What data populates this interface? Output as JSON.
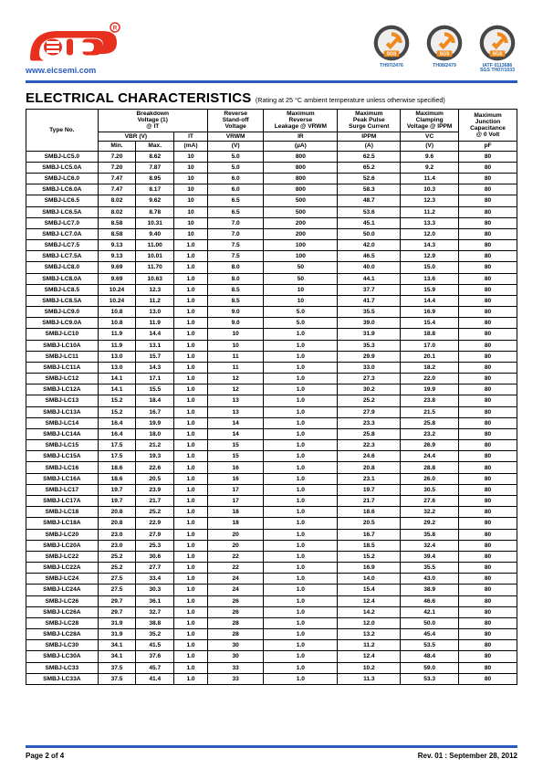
{
  "brand": {
    "url_text": "www.eicsemi.com"
  },
  "badges": [
    {
      "caption": "TH97/2476"
    },
    {
      "caption": "TH08/2479"
    },
    {
      "caption": "IATF 0113686\nSGS TH07/1033"
    }
  ],
  "header_rule_color": "#2a5bbd",
  "title": "ELECTRICAL CHARACTERISTICS",
  "subtitle": " (Rating at 25 °C ambient temperature unless otherwise specified)",
  "table": {
    "head": {
      "type_no": "Type No.",
      "breakdown": "Breakdown\nVoltage (1)\n@ IT",
      "reverse_standoff": "Reverse\nStand-off\nVoltage",
      "max_rev_leak": "Maximum\nReverse\nLeakage @ VRWM",
      "max_ppk": "Maximum\nPeak Pulse\nSurge Current",
      "max_clamp": "Maximum\nClamping\nVoltage @ IPPM",
      "max_cap": "Maximum\nJunction\nCapacitance\n@ 0 Volt",
      "symbols": {
        "vbr": "VBR  (V)",
        "it": "IT",
        "vrwm": "VRWM",
        "ir": "IR",
        "ippm": "IPPM",
        "vc": "VC"
      },
      "units": {
        "min": "Min.",
        "max": "Max.",
        "it": "(mA)",
        "vrwm": "(V)",
        "ir": "(µA)",
        "ippm": "(A)",
        "vc": "(V)",
        "cap": "pF"
      }
    },
    "rows": [
      [
        "SMBJ-LC5.0",
        "7.20",
        "8.62",
        "10",
        "5.0",
        "800",
        "62.5",
        "9.6",
        "80"
      ],
      [
        "SMBJ-LC5.0A",
        "7.20",
        "7.87",
        "10",
        "5.0",
        "800",
        "65.2",
        "9.2",
        "80"
      ],
      [
        "SMBJ-LC6.0",
        "7.47",
        "8.95",
        "10",
        "6.0",
        "800",
        "52.6",
        "11.4",
        "80"
      ],
      [
        "SMBJ-LC6.0A",
        "7.47",
        "8.17",
        "10",
        "6.0",
        "800",
        "58.3",
        "10.3",
        "80"
      ],
      [
        "SMBJ-LC6.5",
        "8.02",
        "9.62",
        "10",
        "6.5",
        "500",
        "48.7",
        "12.3",
        "80"
      ],
      [
        "SMBJ-LC6.5A",
        "8.02",
        "8.78",
        "10",
        "6.5",
        "500",
        "53.6",
        "11.2",
        "80"
      ],
      [
        "SMBJ-LC7.0",
        "8.58",
        "10.31",
        "10",
        "7.0",
        "200",
        "45.1",
        "13.3",
        "80"
      ],
      [
        "SMBJ-LC7.0A",
        "8.58",
        "9.40",
        "10",
        "7.0",
        "200",
        "50.0",
        "12.0",
        "80"
      ],
      [
        "SMBJ-LC7.5",
        "9.13",
        "11.00",
        "1.0",
        "7.5",
        "100",
        "42.0",
        "14.3",
        "80"
      ],
      [
        "SMBJ-LC7.5A",
        "9.13",
        "10.01",
        "1.0",
        "7.5",
        "100",
        "46.5",
        "12.9",
        "80"
      ],
      [
        "SMBJ-LC8.0",
        "9.69",
        "11.70",
        "1.0",
        "8.0",
        "50",
        "40.0",
        "15.0",
        "80"
      ],
      [
        "SMBJ-LC8.0A",
        "9.69",
        "10.63",
        "1.0",
        "8.0",
        "50",
        "44.1",
        "13.6",
        "80"
      ],
      [
        "SMBJ-LC8.5",
        "10.24",
        "12.3",
        "1.0",
        "8.5",
        "10",
        "37.7",
        "15.9",
        "80"
      ],
      [
        "SMBJ-LC8.5A",
        "10.24",
        "11.2",
        "1.0",
        "8.5",
        "10",
        "41.7",
        "14.4",
        "80"
      ],
      [
        "SMBJ-LC9.0",
        "10.8",
        "13.0",
        "1.0",
        "9.0",
        "5.0",
        "35.5",
        "16.9",
        "80"
      ],
      [
        "SMBJ-LC9.0A",
        "10.8",
        "11.9",
        "1.0",
        "9.0",
        "5.0",
        "39.0",
        "15.4",
        "80"
      ],
      [
        "SMBJ-LC10",
        "11.9",
        "14.4",
        "1.0",
        "10",
        "1.0",
        "31.9",
        "18.8",
        "80"
      ],
      [
        "SMBJ-LC10A",
        "11.9",
        "13.1",
        "1.0",
        "10",
        "1.0",
        "35.3",
        "17.0",
        "80"
      ],
      [
        "SMBJ-LC11",
        "13.0",
        "15.7",
        "1.0",
        "11",
        "1.0",
        "29.9",
        "20.1",
        "80"
      ],
      [
        "SMBJ-LC11A",
        "13.0",
        "14.3",
        "1.0",
        "11",
        "1.0",
        "33.0",
        "18.2",
        "80"
      ],
      [
        "SMBJ-LC12",
        "14.1",
        "17.1",
        "1.0",
        "12",
        "1.0",
        "27.3",
        "22.0",
        "80"
      ],
      [
        "SMBJ-LC12A",
        "14.1",
        "15.5",
        "1.0",
        "12",
        "1.0",
        "30.2",
        "19.9",
        "80"
      ],
      [
        "SMBJ-LC13",
        "15.2",
        "18.4",
        "1.0",
        "13",
        "1.0",
        "25.2",
        "23.8",
        "80"
      ],
      [
        "SMBJ-LC13A",
        "15.2",
        "16.7",
        "1.0",
        "13",
        "1.0",
        "27.9",
        "21.5",
        "80"
      ],
      [
        "SMBJ-LC14",
        "16.4",
        "19.9",
        "1.0",
        "14",
        "1.0",
        "23.3",
        "25.8",
        "80"
      ],
      [
        "SMBJ-LC14A",
        "16.4",
        "18.0",
        "1.0",
        "14",
        "1.0",
        "25.8",
        "23.2",
        "80"
      ],
      [
        "SMBJ-LC15",
        "17.5",
        "21.2",
        "1.0",
        "15",
        "1.0",
        "22.3",
        "26.9",
        "80"
      ],
      [
        "SMBJ-LC15A",
        "17.5",
        "19.3",
        "1.0",
        "15",
        "1.0",
        "24.6",
        "24.4",
        "80"
      ],
      [
        "SMBJ-LC16",
        "18.6",
        "22.6",
        "1.0",
        "16",
        "1.0",
        "20.8",
        "28.8",
        "80"
      ],
      [
        "SMBJ-LC16A",
        "18.6",
        "20.5",
        "1.0",
        "16",
        "1.0",
        "23.1",
        "26.0",
        "80"
      ],
      [
        "SMBJ-LC17",
        "19.7",
        "23.9",
        "1.0",
        "17",
        "1.0",
        "19.7",
        "30.5",
        "80"
      ],
      [
        "SMBJ-LC17A",
        "19.7",
        "21.7",
        "1.0",
        "17",
        "1.0",
        "21.7",
        "27.6",
        "80"
      ],
      [
        "SMBJ-LC18",
        "20.8",
        "25.2",
        "1.0",
        "18",
        "1.0",
        "18.6",
        "32.2",
        "80"
      ],
      [
        "SMBJ-LC18A",
        "20.8",
        "22.9",
        "1.0",
        "18",
        "1.0",
        "20.5",
        "29.2",
        "80"
      ],
      [
        "SMBJ-LC20",
        "23.0",
        "27.9",
        "1.0",
        "20",
        "1.0",
        "16.7",
        "35.8",
        "80"
      ],
      [
        "SMBJ-LC20A",
        "23.0",
        "25.3",
        "1.0",
        "20",
        "1.0",
        "18.5",
        "32.4",
        "80"
      ],
      [
        "SMBJ-LC22",
        "25.2",
        "30.6",
        "1.0",
        "22",
        "1.0",
        "15.2",
        "39.4",
        "80"
      ],
      [
        "SMBJ-LC22A",
        "25.2",
        "27.7",
        "1.0",
        "22",
        "1.0",
        "16.9",
        "35.5",
        "80"
      ],
      [
        "SMBJ-LC24",
        "27.5",
        "33.4",
        "1.0",
        "24",
        "1.0",
        "14.0",
        "43.0",
        "80"
      ],
      [
        "SMBJ-LC24A",
        "27.5",
        "30.3",
        "1.0",
        "24",
        "1.0",
        "15.4",
        "38.9",
        "80"
      ],
      [
        "SMBJ-LC26",
        "29.7",
        "36.1",
        "1.0",
        "26",
        "1.0",
        "12.4",
        "46.6",
        "80"
      ],
      [
        "SMBJ-LC26A",
        "29.7",
        "32.7",
        "1.0",
        "26",
        "1.0",
        "14.2",
        "42.1",
        "80"
      ],
      [
        "SMBJ-LC28",
        "31.9",
        "38.8",
        "1.0",
        "28",
        "1.0",
        "12.0",
        "50.0",
        "80"
      ],
      [
        "SMBJ-LC28A",
        "31.9",
        "35.2",
        "1.0",
        "28",
        "1.0",
        "13.2",
        "45.4",
        "80"
      ],
      [
        "SMBJ-LC30",
        "34.1",
        "41.5",
        "1.0",
        "30",
        "1.0",
        "11.2",
        "53.5",
        "80"
      ],
      [
        "SMBJ-LC30A",
        "34.1",
        "37.6",
        "1.0",
        "30",
        "1.0",
        "12.4",
        "48.4",
        "80"
      ],
      [
        "SMBJ-LC33",
        "37.5",
        "45.7",
        "1.0",
        "33",
        "1.0",
        "10.2",
        "59.0",
        "80"
      ],
      [
        "SMBJ-LC33A",
        "37.5",
        "41.4",
        "1.0",
        "33",
        "1.0",
        "11.3",
        "53.3",
        "80"
      ]
    ]
  },
  "footer": {
    "left": "Page 2 of 4",
    "right": "Rev. 01 : September 28, 2012"
  },
  "logo_colors": {
    "main": "#e8301f",
    "accent": "#e8301f"
  },
  "badge_colors": {
    "ring_outer": "#474747",
    "ring_inner": "#eee",
    "swoosh": "#f18a1e",
    "sgs_bg": "#f18a1e",
    "sgs_text": "#fff"
  }
}
